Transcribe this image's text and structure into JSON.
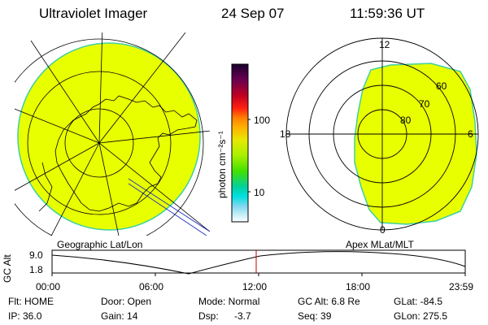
{
  "header": {
    "title": "Ultraviolet Imager",
    "date": "24 Sep 07",
    "time": "11:59:36 UT"
  },
  "left_panel": {
    "label": "Geographic Lat/Lon"
  },
  "right_panel": {
    "label": "Apex MLat/MLT",
    "mlt_labels": {
      "top": "12",
      "left": "18",
      "right": "6",
      "bottom": "0"
    },
    "lat_labels": [
      "60",
      "70",
      "80"
    ]
  },
  "colorbar": {
    "unit_label": "photon cm⁻²s⁻¹",
    "ticks": [
      "100",
      "10"
    ],
    "colors": [
      "#1a0030",
      "#4a0050",
      "#7a0050",
      "#b00020",
      "#e00010",
      "#ff4000",
      "#ff8000",
      "#ffb000",
      "#e0e000",
      "#a8f000",
      "#50e000",
      "#00d080",
      "#00e0e0",
      "#60d8f0",
      "#b0e8f8",
      "#ffffff"
    ]
  },
  "timeline": {
    "ylabel": "GC Alt",
    "y_ticks": [
      "9.0",
      "1.8"
    ],
    "x_ticks": [
      "00:00",
      "06:00",
      "12:00",
      "18:00",
      "23:59"
    ],
    "marker_color": "#c00000"
  },
  "info": {
    "flt": "Flt: HOME",
    "ip": "IP: 36.0",
    "door": "Door: Open",
    "gain": "Gain: 14",
    "mode": "Mode: Normal",
    "dsp_label": "Dsp:",
    "dsp_value": "-3.7",
    "gc_alt": "GC Alt: 6.8 Re",
    "seq": "Seq: 39",
    "glat": "GLat: -84.5",
    "glon": "GLon: 275.5"
  },
  "colors": {
    "image_fill": "#e8ff00",
    "image_edge": "#40d0a0"
  }
}
